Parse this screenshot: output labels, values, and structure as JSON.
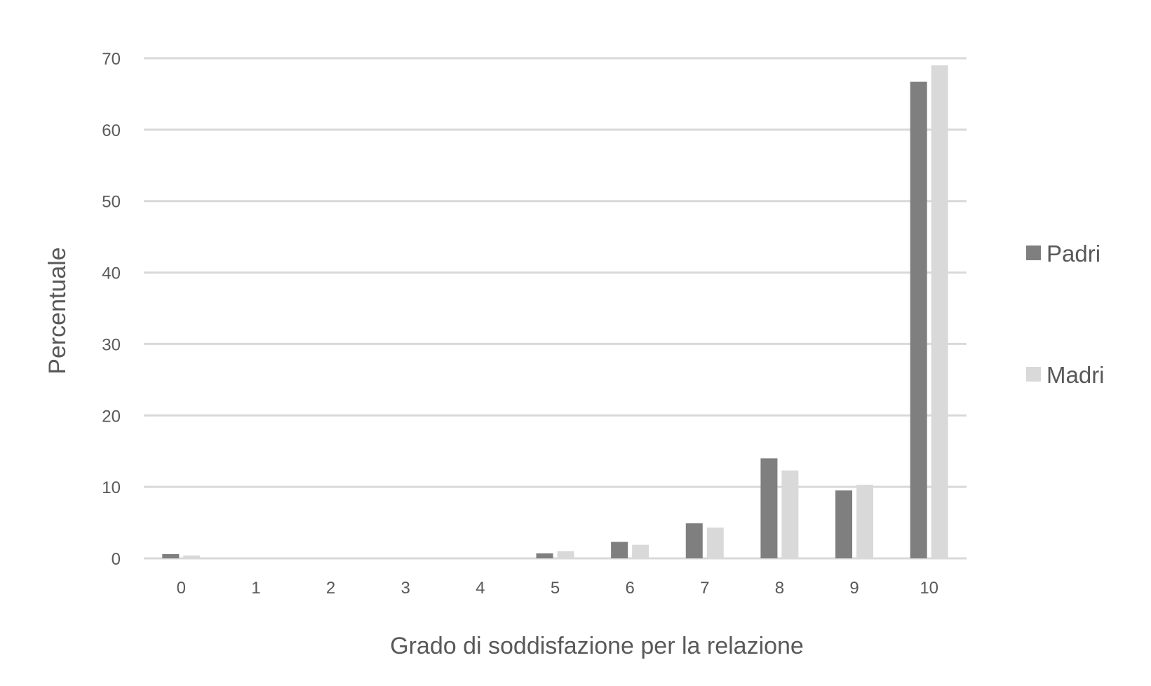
{
  "chart_data": {
    "type": "bar",
    "title": "",
    "xlabel": "Grado di soddisfazione per la relazione",
    "ylabel": "Percentuale",
    "categories": [
      "0",
      "1",
      "2",
      "3",
      "4",
      "5",
      "6",
      "7",
      "8",
      "9",
      "10"
    ],
    "series": [
      {
        "name": "Padri",
        "color": "#7f7f7f",
        "values": [
          0.6,
          0,
          0,
          0,
          0,
          0.7,
          2.3,
          4.9,
          14.0,
          9.5,
          66.7
        ]
      },
      {
        "name": "Madri",
        "color": "#d9d9d9",
        "values": [
          0.4,
          0,
          0,
          0,
          0,
          1.0,
          1.9,
          4.3,
          12.3,
          10.3,
          69.0
        ]
      }
    ],
    "ylim": [
      0,
      70
    ],
    "yticks": [
      "0",
      "10",
      "20",
      "30",
      "40",
      "50",
      "60",
      "70"
    ],
    "grid": true,
    "legend_position": "right"
  }
}
